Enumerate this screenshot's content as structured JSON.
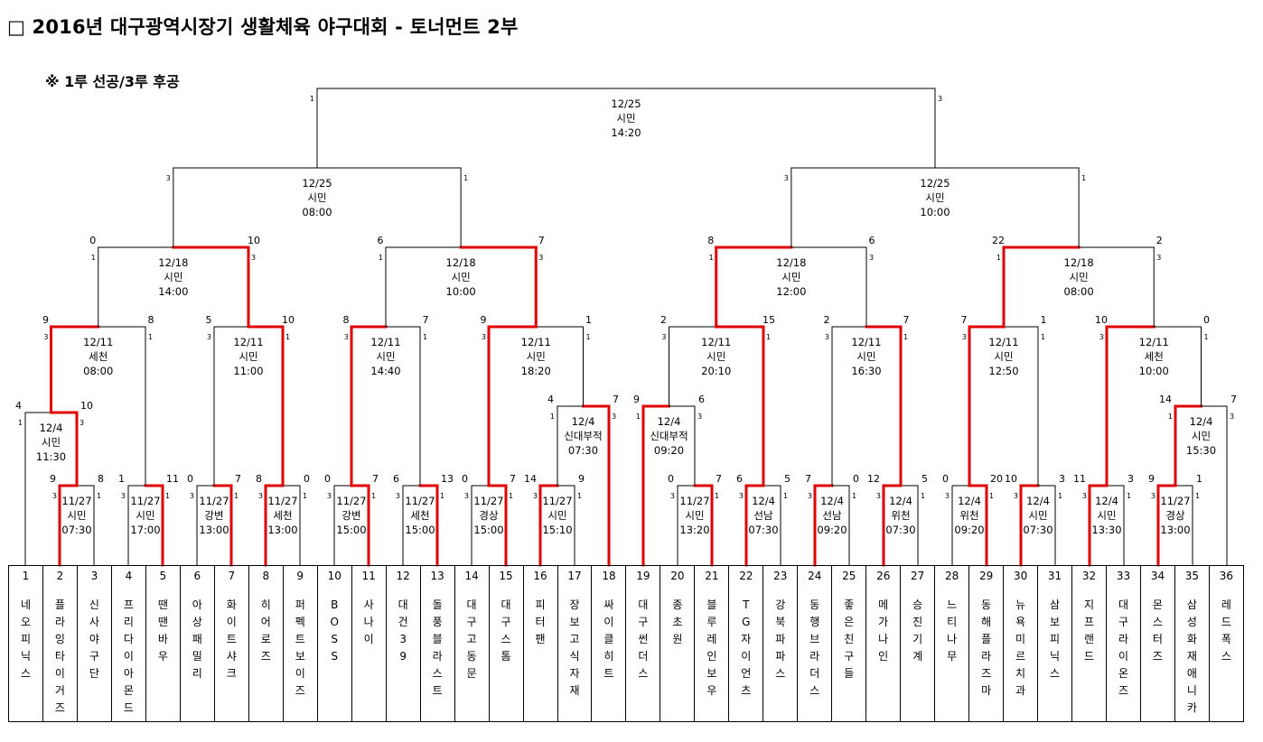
{
  "title": "□ 2016년 대구광역시장기 생활체육 야구대회 - 토너먼트 2부",
  "note": "※ 1루 선공/3루 후공",
  "colors": {
    "winner_line": "#e00000",
    "line": "#000000"
  },
  "teams": [
    {
      "num": "1",
      "name": "네오피닉스"
    },
    {
      "num": "2",
      "name": "플라잉타이거즈"
    },
    {
      "num": "3",
      "name": "신사야구단"
    },
    {
      "num": "4",
      "name": "프리다이아몬드"
    },
    {
      "num": "5",
      "name": "땐땐바우"
    },
    {
      "num": "6",
      "name": "아상패밀리"
    },
    {
      "num": "7",
      "name": "화이트샤크"
    },
    {
      "num": "8",
      "name": "히어로즈"
    },
    {
      "num": "9",
      "name": "퍼펙트보이즈"
    },
    {
      "num": "10",
      "name": "BOSS"
    },
    {
      "num": "11",
      "name": "사나이"
    },
    {
      "num": "12",
      "name": "대건39"
    },
    {
      "num": "13",
      "name": "돌풍블라스트"
    },
    {
      "num": "14",
      "name": "대구고동문"
    },
    {
      "num": "15",
      "name": "대구스톰"
    },
    {
      "num": "16",
      "name": "피터팬"
    },
    {
      "num": "17",
      "name": "장보고식자재"
    },
    {
      "num": "18",
      "name": "싸이클히트"
    },
    {
      "num": "19",
      "name": "대구썬더스"
    },
    {
      "num": "20",
      "name": "종초원"
    },
    {
      "num": "21",
      "name": "블루레인보우"
    },
    {
      "num": "22",
      "name": "TG자이언츠"
    },
    {
      "num": "23",
      "name": "강북파파스"
    },
    {
      "num": "24",
      "name": "동행브라더스"
    },
    {
      "num": "25",
      "name": "좋은친구들"
    },
    {
      "num": "26",
      "name": "메가나인"
    },
    {
      "num": "27",
      "name": "승진기계"
    },
    {
      "num": "28",
      "name": "느티나무"
    },
    {
      "num": "29",
      "name": "동해플라즈마"
    },
    {
      "num": "30",
      "name": "뉴욕미르치과"
    },
    {
      "num": "31",
      "name": "삼보피닉스"
    },
    {
      "num": "32",
      "name": "지프랜드"
    },
    {
      "num": "33",
      "name": "대구라이온즈"
    },
    {
      "num": "34",
      "name": "몬스터즈"
    },
    {
      "num": "35",
      "name": "삼성화재애니카"
    },
    {
      "num": "36",
      "name": "레드폭스"
    }
  ],
  "matches": [
    {
      "id": "p1",
      "date": "12/4",
      "venue": "시민",
      "time": "11:30",
      "score_left": "4",
      "score_right": "10",
      "side_left": "1",
      "side_right": "3",
      "winner": "right"
    },
    {
      "id": "a1",
      "date": "11/27",
      "venue": "시민",
      "time": "07:30",
      "score_left": "9",
      "score_right": "8",
      "side_left": "3",
      "side_right": "1",
      "winner": "left"
    },
    {
      "id": "a2",
      "date": "11/27",
      "venue": "시민",
      "time": "17:00",
      "score_left": "1",
      "score_right": "11",
      "side_left": "3",
      "side_right": "1",
      "winner": "right"
    },
    {
      "id": "a3",
      "date": "11/27",
      "venue": "강변",
      "time": "13:00",
      "score_left": "0",
      "score_right": "7",
      "side_left": "3",
      "side_right": "1",
      "winner": "right"
    },
    {
      "id": "a4",
      "date": "11/27",
      "venue": "세천",
      "time": "13:00",
      "score_left": "8",
      "score_right": "0",
      "side_left": "3",
      "side_right": "1",
      "winner": "left"
    },
    {
      "id": "a5",
      "date": "11/27",
      "venue": "강변",
      "time": "15:00",
      "score_left": "0",
      "score_right": "7",
      "side_left": "3",
      "side_right": "1",
      "winner": "right"
    },
    {
      "id": "a6",
      "date": "11/27",
      "venue": "세천",
      "time": "15:00",
      "score_left": "6",
      "score_right": "13",
      "side_left": "3",
      "side_right": "1",
      "winner": "right"
    },
    {
      "id": "a7",
      "date": "11/27",
      "venue": "경상",
      "time": "15:00",
      "score_left": "0",
      "score_right": "7",
      "side_left": "3",
      "side_right": "1",
      "winner": "right"
    },
    {
      "id": "a8",
      "date": "11/27",
      "venue": "시민",
      "time": "15:10",
      "score_left": "14",
      "score_right": "9",
      "side_left": "3",
      "side_right": "1",
      "winner": "left"
    },
    {
      "id": "p2",
      "date": "12/4",
      "venue": "신대부적",
      "time": "07:30",
      "score_left": "4",
      "score_right": "7",
      "side_left": "1",
      "side_right": "3",
      "winner": "right"
    },
    {
      "id": "p3",
      "date": "12/4",
      "venue": "신대부적",
      "time": "09:20",
      "score_left": "9",
      "score_right": "6",
      "side_left": "1",
      "side_right": "3",
      "winner": "left"
    },
    {
      "id": "a9",
      "date": "11/27",
      "venue": "시민",
      "time": "13:20",
      "score_left": "0",
      "score_right": "7",
      "side_left": "3",
      "side_right": "1",
      "winner": "right"
    },
    {
      "id": "a10",
      "date": "12/4",
      "venue": "선남",
      "time": "07:30",
      "score_left": "6",
      "score_right": "5",
      "side_left": "3",
      "side_right": "1",
      "winner": "left"
    },
    {
      "id": "a11",
      "date": "12/4",
      "venue": "선남",
      "time": "09:20",
      "score_left": "7",
      "score_right": "0",
      "side_left": "3",
      "side_right": "1",
      "winner": "left"
    },
    {
      "id": "a12",
      "date": "12/4",
      "venue": "위천",
      "time": "07:30",
      "score_left": "12",
      "score_right": "5",
      "side_left": "3",
      "side_right": "1",
      "winner": "left"
    },
    {
      "id": "a13",
      "date": "12/4",
      "venue": "위천",
      "time": "09:20",
      "score_left": "0",
      "score_right": "20",
      "side_left": "3",
      "side_right": "1",
      "winner": "right"
    },
    {
      "id": "a14",
      "date": "12/4",
      "venue": "시민",
      "time": "07:30",
      "score_left": "10",
      "score_right": "3",
      "side_left": "3",
      "side_right": "1",
      "winner": "left"
    },
    {
      "id": "a15",
      "date": "12/4",
      "venue": "시민",
      "time": "13:30",
      "score_left": "11",
      "score_right": "3",
      "side_left": "3",
      "side_right": "1",
      "winner": "left"
    },
    {
      "id": "a16",
      "date": "11/27",
      "venue": "경상",
      "time": "13:00",
      "score_left": "9",
      "score_right": "1",
      "side_left": "3",
      "side_right": "1",
      "winner": "left"
    },
    {
      "id": "p4",
      "date": "12/4",
      "venue": "시민",
      "time": "15:30",
      "score_left": "14",
      "score_right": "7",
      "side_left": "1",
      "side_right": "3",
      "winner": "left"
    },
    {
      "id": "r1",
      "date": "12/11",
      "venue": "세천",
      "time": "08:00",
      "score_left": "9",
      "score_right": "8",
      "side_left": "3",
      "side_right": "1",
      "winner": "left"
    },
    {
      "id": "r2",
      "date": "12/11",
      "venue": "시민",
      "time": "11:00",
      "score_left": "5",
      "score_right": "10",
      "side_left": "3",
      "side_right": "1",
      "winner": "right"
    },
    {
      "id": "r3",
      "date": "12/11",
      "venue": "시민",
      "time": "14:40",
      "score_left": "8",
      "score_right": "7",
      "side_left": "3",
      "side_right": "1",
      "winner": "left"
    },
    {
      "id": "r4",
      "date": "12/11",
      "venue": "시민",
      "time": "18:20",
      "score_left": "9",
      "score_right": "1",
      "side_left": "3",
      "side_right": "1",
      "winner": "left"
    },
    {
      "id": "r5",
      "date": "12/11",
      "venue": "시민",
      "time": "20:10",
      "score_left": "2",
      "score_right": "15",
      "side_left": "3",
      "side_right": "1",
      "winner": "right"
    },
    {
      "id": "r6",
      "date": "12/11",
      "venue": "시민",
      "time": "16:30",
      "score_left": "2",
      "score_right": "7",
      "side_left": "3",
      "side_right": "1",
      "winner": "right"
    },
    {
      "id": "r7",
      "date": "12/11",
      "venue": "시민",
      "time": "12:50",
      "score_left": "7",
      "score_right": "1",
      "side_left": "3",
      "side_right": "1",
      "winner": "left"
    },
    {
      "id": "r8",
      "date": "12/11",
      "venue": "세천",
      "time": "10:00",
      "score_left": "10",
      "score_right": "0",
      "side_left": "3",
      "side_right": "1",
      "winner": "left"
    },
    {
      "id": "q1",
      "date": "12/18",
      "venue": "시민",
      "time": "14:00",
      "score_left": "0",
      "score_right": "10",
      "side_left": "1",
      "side_right": "3",
      "winner": "right"
    },
    {
      "id": "q2",
      "date": "12/18",
      "venue": "시민",
      "time": "10:00",
      "score_left": "6",
      "score_right": "7",
      "side_left": "1",
      "side_right": "3",
      "winner": "right"
    },
    {
      "id": "q3",
      "date": "12/18",
      "venue": "시민",
      "time": "12:00",
      "score_left": "8",
      "score_right": "6",
      "side_left": "1",
      "side_right": "3",
      "winner": "left"
    },
    {
      "id": "q4",
      "date": "12/18",
      "venue": "시민",
      "time": "08:00",
      "score_left": "22",
      "score_right": "2",
      "side_left": "1",
      "side_right": "3",
      "winner": "left"
    },
    {
      "id": "s1",
      "date": "12/25",
      "venue": "시민",
      "time": "08:00",
      "score_left": "",
      "score_right": "",
      "side_left": "3",
      "side_right": "1",
      "winner": "none"
    },
    {
      "id": "s2",
      "date": "12/25",
      "venue": "시민",
      "time": "10:00",
      "score_left": "",
      "score_right": "",
      "side_left": "3",
      "side_right": "1",
      "winner": "none"
    },
    {
      "id": "f",
      "date": "12/25",
      "venue": "시민",
      "time": "14:20",
      "score_left": "",
      "score_right": "",
      "side_left": "1",
      "side_right": "3",
      "winner": "none"
    }
  ]
}
